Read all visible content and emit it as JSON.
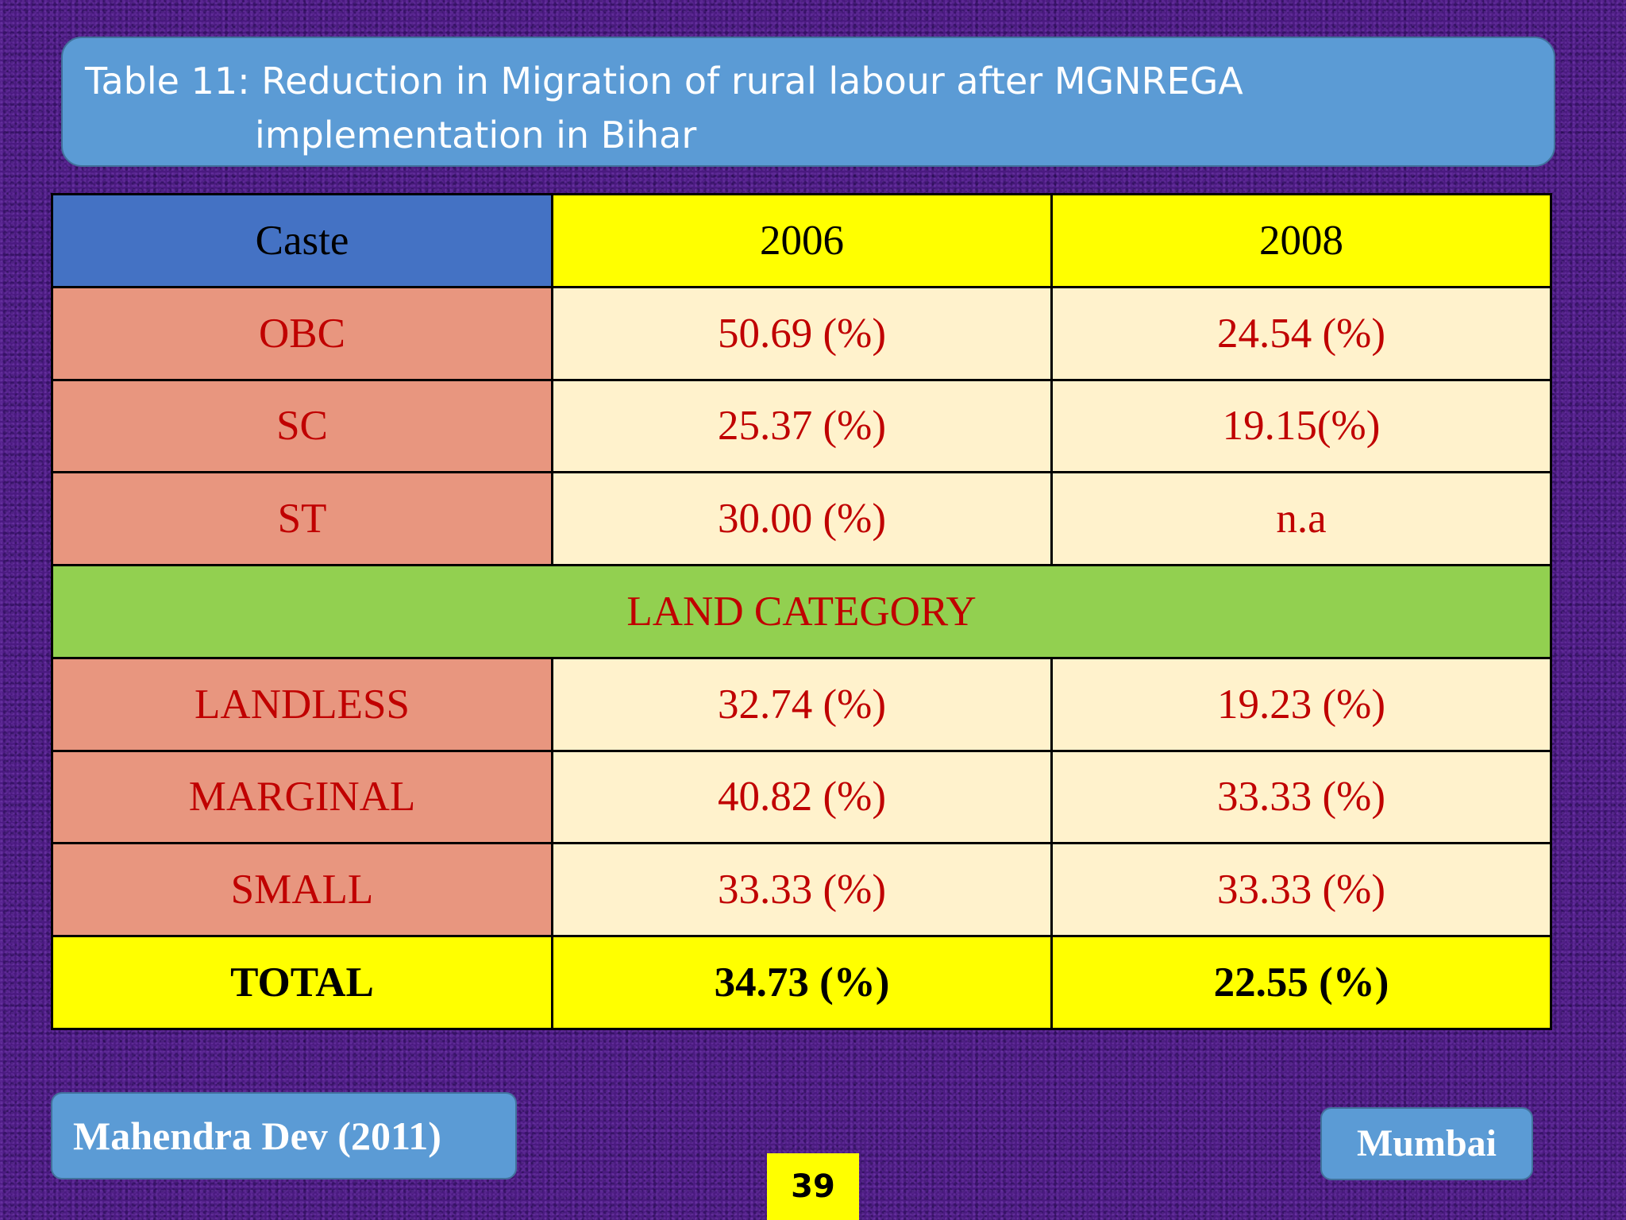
{
  "slide": {
    "title_line1": "Table 11: Reduction in Migration of  rural labour  after MGNREGA",
    "title_line2": "implementation in Bihar",
    "source": "Mahendra Dev (2011)",
    "location": "Mumbai",
    "page_number": "39"
  },
  "table": {
    "headers": [
      "Caste",
      "2006",
      "2008"
    ],
    "caste_rows": [
      {
        "label": "OBC",
        "v2006": "50.69 (%)",
        "v2008": "24.54 (%)"
      },
      {
        "label": "SC",
        "v2006": "25.37 (%)",
        "v2008": "19.15(%)"
      },
      {
        "label": "ST",
        "v2006": "30.00 (%)",
        "v2008": "n.a"
      }
    ],
    "section_label": "LAND CATEGORY",
    "land_rows": [
      {
        "label": "LANDLESS",
        "v2006": "32.74 (%)",
        "v2008": "19.23 (%)"
      },
      {
        "label": "MARGINAL",
        "v2006": "40.82 (%)",
        "v2008": "33.33 (%)"
      },
      {
        "label": "SMALL",
        "v2006": "33.33 (%)",
        "v2008": "33.33 (%)"
      }
    ],
    "total": {
      "label": "TOTAL",
      "v2006": "34.73 (%)",
      "v2008": "22.55 (%)"
    }
  },
  "colors": {
    "background": "#4a1a80",
    "title_box": "#5b9bd5",
    "header_caste": "#4472c4",
    "header_year": "#ffff00",
    "label_cell": "#e8967f",
    "value_cell": "#fff2cc",
    "section_row": "#92d050",
    "total_row": "#ffff00",
    "red_text": "#c00000"
  }
}
